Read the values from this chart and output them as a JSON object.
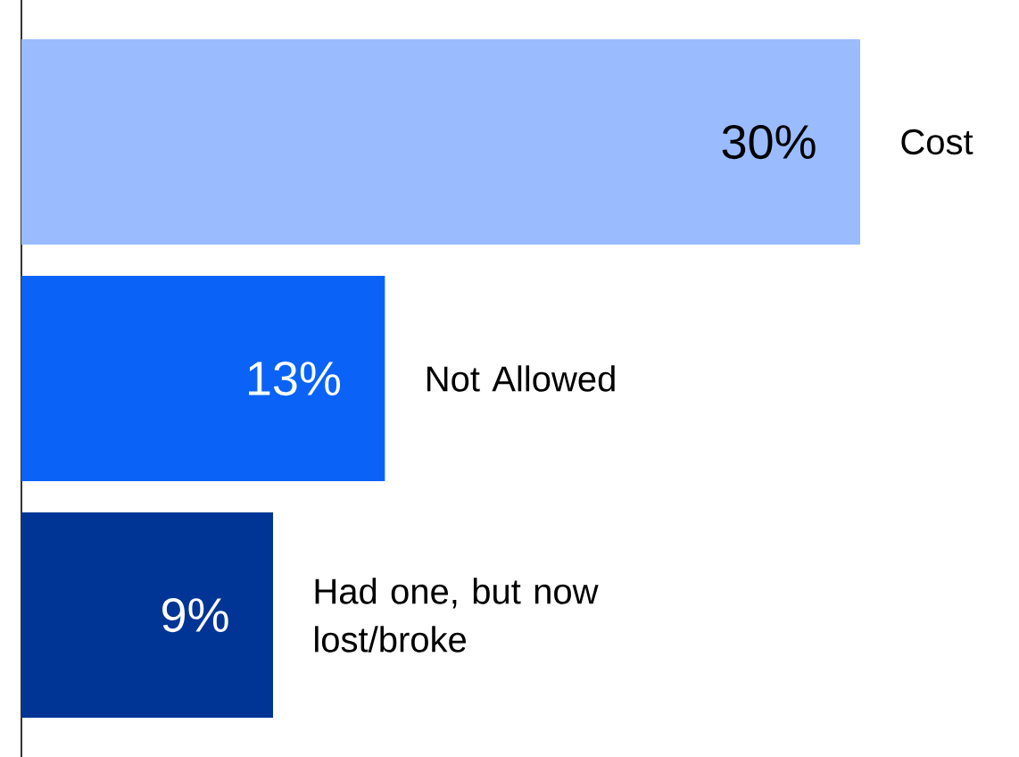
{
  "chart_data": {
    "type": "bar",
    "orientation": "horizontal",
    "categories": [
      "Cost",
      "Not Allowed",
      "Had one, but now lost/broke"
    ],
    "values": [
      30,
      13,
      9
    ],
    "value_labels": [
      "30%",
      "13%",
      "9%"
    ],
    "colors": [
      "#9abcfe",
      "#0a63f6",
      "#003595"
    ]
  }
}
